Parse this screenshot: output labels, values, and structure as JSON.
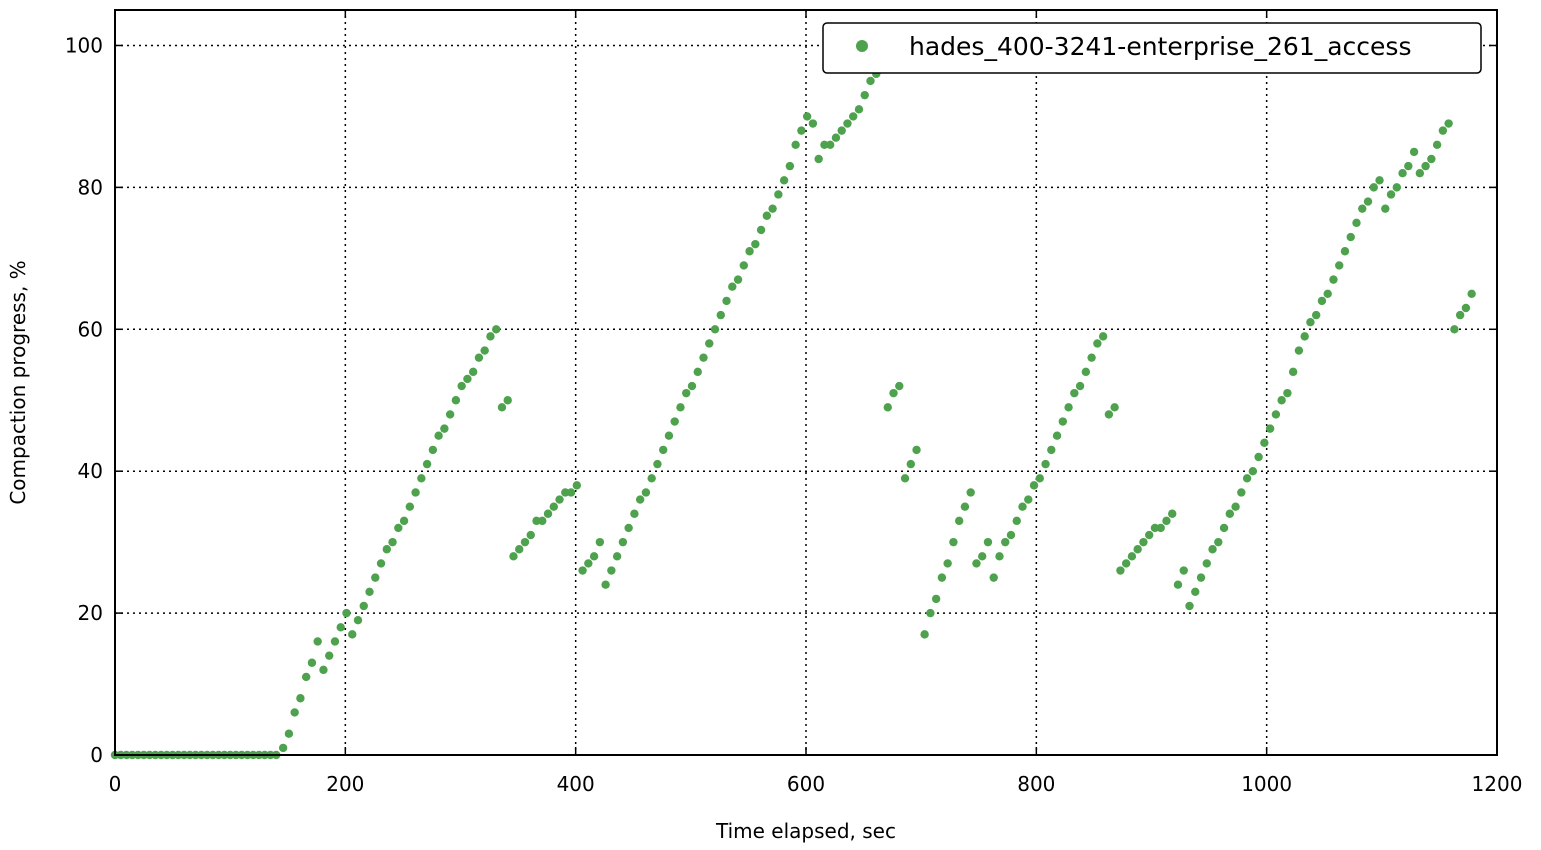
{
  "chart_data": {
    "type": "scatter",
    "xlabel": "Time elapsed, sec",
    "ylabel": "Compaction progress, %",
    "xlim": [
      0,
      1200
    ],
    "ylim": [
      0,
      105
    ],
    "xticks": [
      0,
      200,
      400,
      600,
      800,
      1000,
      1200
    ],
    "yticks": [
      0,
      20,
      40,
      60,
      80,
      100
    ],
    "x_tick_labels": [
      "0",
      "200",
      "400",
      "600",
      "800",
      "1000",
      "1200"
    ],
    "y_tick_labels": [
      "0",
      "20",
      "40",
      "60",
      "80",
      "100"
    ],
    "grid": true,
    "legend_position": "top-right",
    "series": [
      {
        "name": "hades_400-3241-enterprise_261_access",
        "color": "#4ea24e",
        "points": [
          [
            0,
            0
          ],
          [
            5,
            0
          ],
          [
            10,
            0
          ],
          [
            15,
            0
          ],
          [
            20,
            0
          ],
          [
            25,
            0
          ],
          [
            30,
            0
          ],
          [
            35,
            0
          ],
          [
            40,
            0
          ],
          [
            45,
            0
          ],
          [
            50,
            0
          ],
          [
            55,
            0
          ],
          [
            60,
            0
          ],
          [
            65,
            0
          ],
          [
            70,
            0
          ],
          [
            75,
            0
          ],
          [
            80,
            0
          ],
          [
            85,
            0
          ],
          [
            90,
            0
          ],
          [
            95,
            0
          ],
          [
            100,
            0
          ],
          [
            105,
            0
          ],
          [
            110,
            0
          ],
          [
            115,
            0
          ],
          [
            120,
            0
          ],
          [
            125,
            0
          ],
          [
            130,
            0
          ],
          [
            135,
            0
          ],
          [
            140,
            0
          ],
          [
            146,
            1
          ],
          [
            151,
            3
          ],
          [
            156,
            6
          ],
          [
            161,
            8
          ],
          [
            166,
            11
          ],
          [
            171,
            13
          ],
          [
            176,
            16
          ],
          [
            181,
            12
          ],
          [
            186,
            14
          ],
          [
            191,
            16
          ],
          [
            196,
            18
          ],
          [
            201,
            20
          ],
          [
            206,
            17
          ],
          [
            211,
            19
          ],
          [
            216,
            21
          ],
          [
            221,
            23
          ],
          [
            226,
            25
          ],
          [
            231,
            27
          ],
          [
            236,
            29
          ],
          [
            241,
            30
          ],
          [
            246,
            32
          ],
          [
            251,
            33
          ],
          [
            256,
            35
          ],
          [
            261,
            37
          ],
          [
            266,
            39
          ],
          [
            271,
            41
          ],
          [
            276,
            43
          ],
          [
            281,
            45
          ],
          [
            286,
            46
          ],
          [
            291,
            48
          ],
          [
            296,
            50
          ],
          [
            301,
            52
          ],
          [
            306,
            53
          ],
          [
            311,
            54
          ],
          [
            316,
            56
          ],
          [
            321,
            57
          ],
          [
            326,
            59
          ],
          [
            331,
            60
          ],
          [
            336,
            49
          ],
          [
            341,
            50
          ],
          [
            346,
            28
          ],
          [
            351,
            29
          ],
          [
            356,
            30
          ],
          [
            361,
            31
          ],
          [
            366,
            33
          ],
          [
            371,
            33
          ],
          [
            376,
            34
          ],
          [
            381,
            35
          ],
          [
            386,
            36
          ],
          [
            391,
            37
          ],
          [
            396,
            37
          ],
          [
            401,
            38
          ],
          [
            406,
            26
          ],
          [
            411,
            27
          ],
          [
            416,
            28
          ],
          [
            421,
            30
          ],
          [
            426,
            24
          ],
          [
            431,
            26
          ],
          [
            436,
            28
          ],
          [
            441,
            30
          ],
          [
            446,
            32
          ],
          [
            451,
            34
          ],
          [
            456,
            36
          ],
          [
            461,
            37
          ],
          [
            466,
            39
          ],
          [
            471,
            41
          ],
          [
            476,
            43
          ],
          [
            481,
            45
          ],
          [
            486,
            47
          ],
          [
            491,
            49
          ],
          [
            496,
            51
          ],
          [
            501,
            52
          ],
          [
            506,
            54
          ],
          [
            511,
            56
          ],
          [
            516,
            58
          ],
          [
            521,
            60
          ],
          [
            526,
            62
          ],
          [
            531,
            64
          ],
          [
            536,
            66
          ],
          [
            541,
            67
          ],
          [
            546,
            69
          ],
          [
            551,
            71
          ],
          [
            556,
            72
          ],
          [
            561,
            74
          ],
          [
            566,
            76
          ],
          [
            571,
            77
          ],
          [
            576,
            79
          ],
          [
            581,
            81
          ],
          [
            586,
            83
          ],
          [
            591,
            86
          ],
          [
            596,
            88
          ],
          [
            601,
            90
          ],
          [
            606,
            89
          ],
          [
            611,
            84
          ],
          [
            616,
            86
          ],
          [
            621,
            86
          ],
          [
            626,
            87
          ],
          [
            631,
            88
          ],
          [
            636,
            89
          ],
          [
            641,
            90
          ],
          [
            646,
            91
          ],
          [
            651,
            93
          ],
          [
            656,
            95
          ],
          [
            661,
            96
          ],
          [
            671,
            49
          ],
          [
            676,
            51
          ],
          [
            681,
            52
          ],
          [
            686,
            39
          ],
          [
            691,
            41
          ],
          [
            696,
            43
          ],
          [
            703,
            17
          ],
          [
            708,
            20
          ],
          [
            713,
            22
          ],
          [
            718,
            25
          ],
          [
            723,
            27
          ],
          [
            728,
            30
          ],
          [
            733,
            33
          ],
          [
            738,
            35
          ],
          [
            743,
            37
          ],
          [
            748,
            27
          ],
          [
            753,
            28
          ],
          [
            758,
            30
          ],
          [
            763,
            25
          ],
          [
            768,
            28
          ],
          [
            773,
            30
          ],
          [
            778,
            31
          ],
          [
            783,
            33
          ],
          [
            788,
            35
          ],
          [
            793,
            36
          ],
          [
            798,
            38
          ],
          [
            803,
            39
          ],
          [
            808,
            41
          ],
          [
            813,
            43
          ],
          [
            818,
            45
          ],
          [
            823,
            47
          ],
          [
            828,
            49
          ],
          [
            833,
            51
          ],
          [
            838,
            52
          ],
          [
            843,
            54
          ],
          [
            848,
            56
          ],
          [
            853,
            58
          ],
          [
            858,
            59
          ],
          [
            863,
            48
          ],
          [
            868,
            49
          ],
          [
            873,
            26
          ],
          [
            878,
            27
          ],
          [
            883,
            28
          ],
          [
            888,
            29
          ],
          [
            893,
            30
          ],
          [
            898,
            31
          ],
          [
            903,
            32
          ],
          [
            908,
            32
          ],
          [
            913,
            33
          ],
          [
            918,
            34
          ],
          [
            923,
            24
          ],
          [
            928,
            26
          ],
          [
            933,
            21
          ],
          [
            938,
            23
          ],
          [
            943,
            25
          ],
          [
            948,
            27
          ],
          [
            953,
            29
          ],
          [
            958,
            30
          ],
          [
            963,
            32
          ],
          [
            968,
            34
          ],
          [
            973,
            35
          ],
          [
            978,
            37
          ],
          [
            983,
            39
          ],
          [
            988,
            40
          ],
          [
            993,
            42
          ],
          [
            998,
            44
          ],
          [
            1003,
            46
          ],
          [
            1008,
            48
          ],
          [
            1013,
            50
          ],
          [
            1018,
            51
          ],
          [
            1023,
            54
          ],
          [
            1028,
            57
          ],
          [
            1033,
            59
          ],
          [
            1038,
            61
          ],
          [
            1043,
            62
          ],
          [
            1048,
            64
          ],
          [
            1053,
            65
          ],
          [
            1058,
            67
          ],
          [
            1063,
            69
          ],
          [
            1068,
            71
          ],
          [
            1073,
            73
          ],
          [
            1078,
            75
          ],
          [
            1083,
            77
          ],
          [
            1088,
            78
          ],
          [
            1093,
            80
          ],
          [
            1098,
            81
          ],
          [
            1103,
            77
          ],
          [
            1108,
            79
          ],
          [
            1113,
            80
          ],
          [
            1118,
            82
          ],
          [
            1123,
            83
          ],
          [
            1128,
            85
          ],
          [
            1133,
            82
          ],
          [
            1138,
            83
          ],
          [
            1143,
            84
          ],
          [
            1148,
            86
          ],
          [
            1153,
            88
          ],
          [
            1158,
            89
          ],
          [
            1163,
            60
          ],
          [
            1168,
            62
          ],
          [
            1173,
            63
          ],
          [
            1178,
            65
          ]
        ]
      }
    ]
  }
}
